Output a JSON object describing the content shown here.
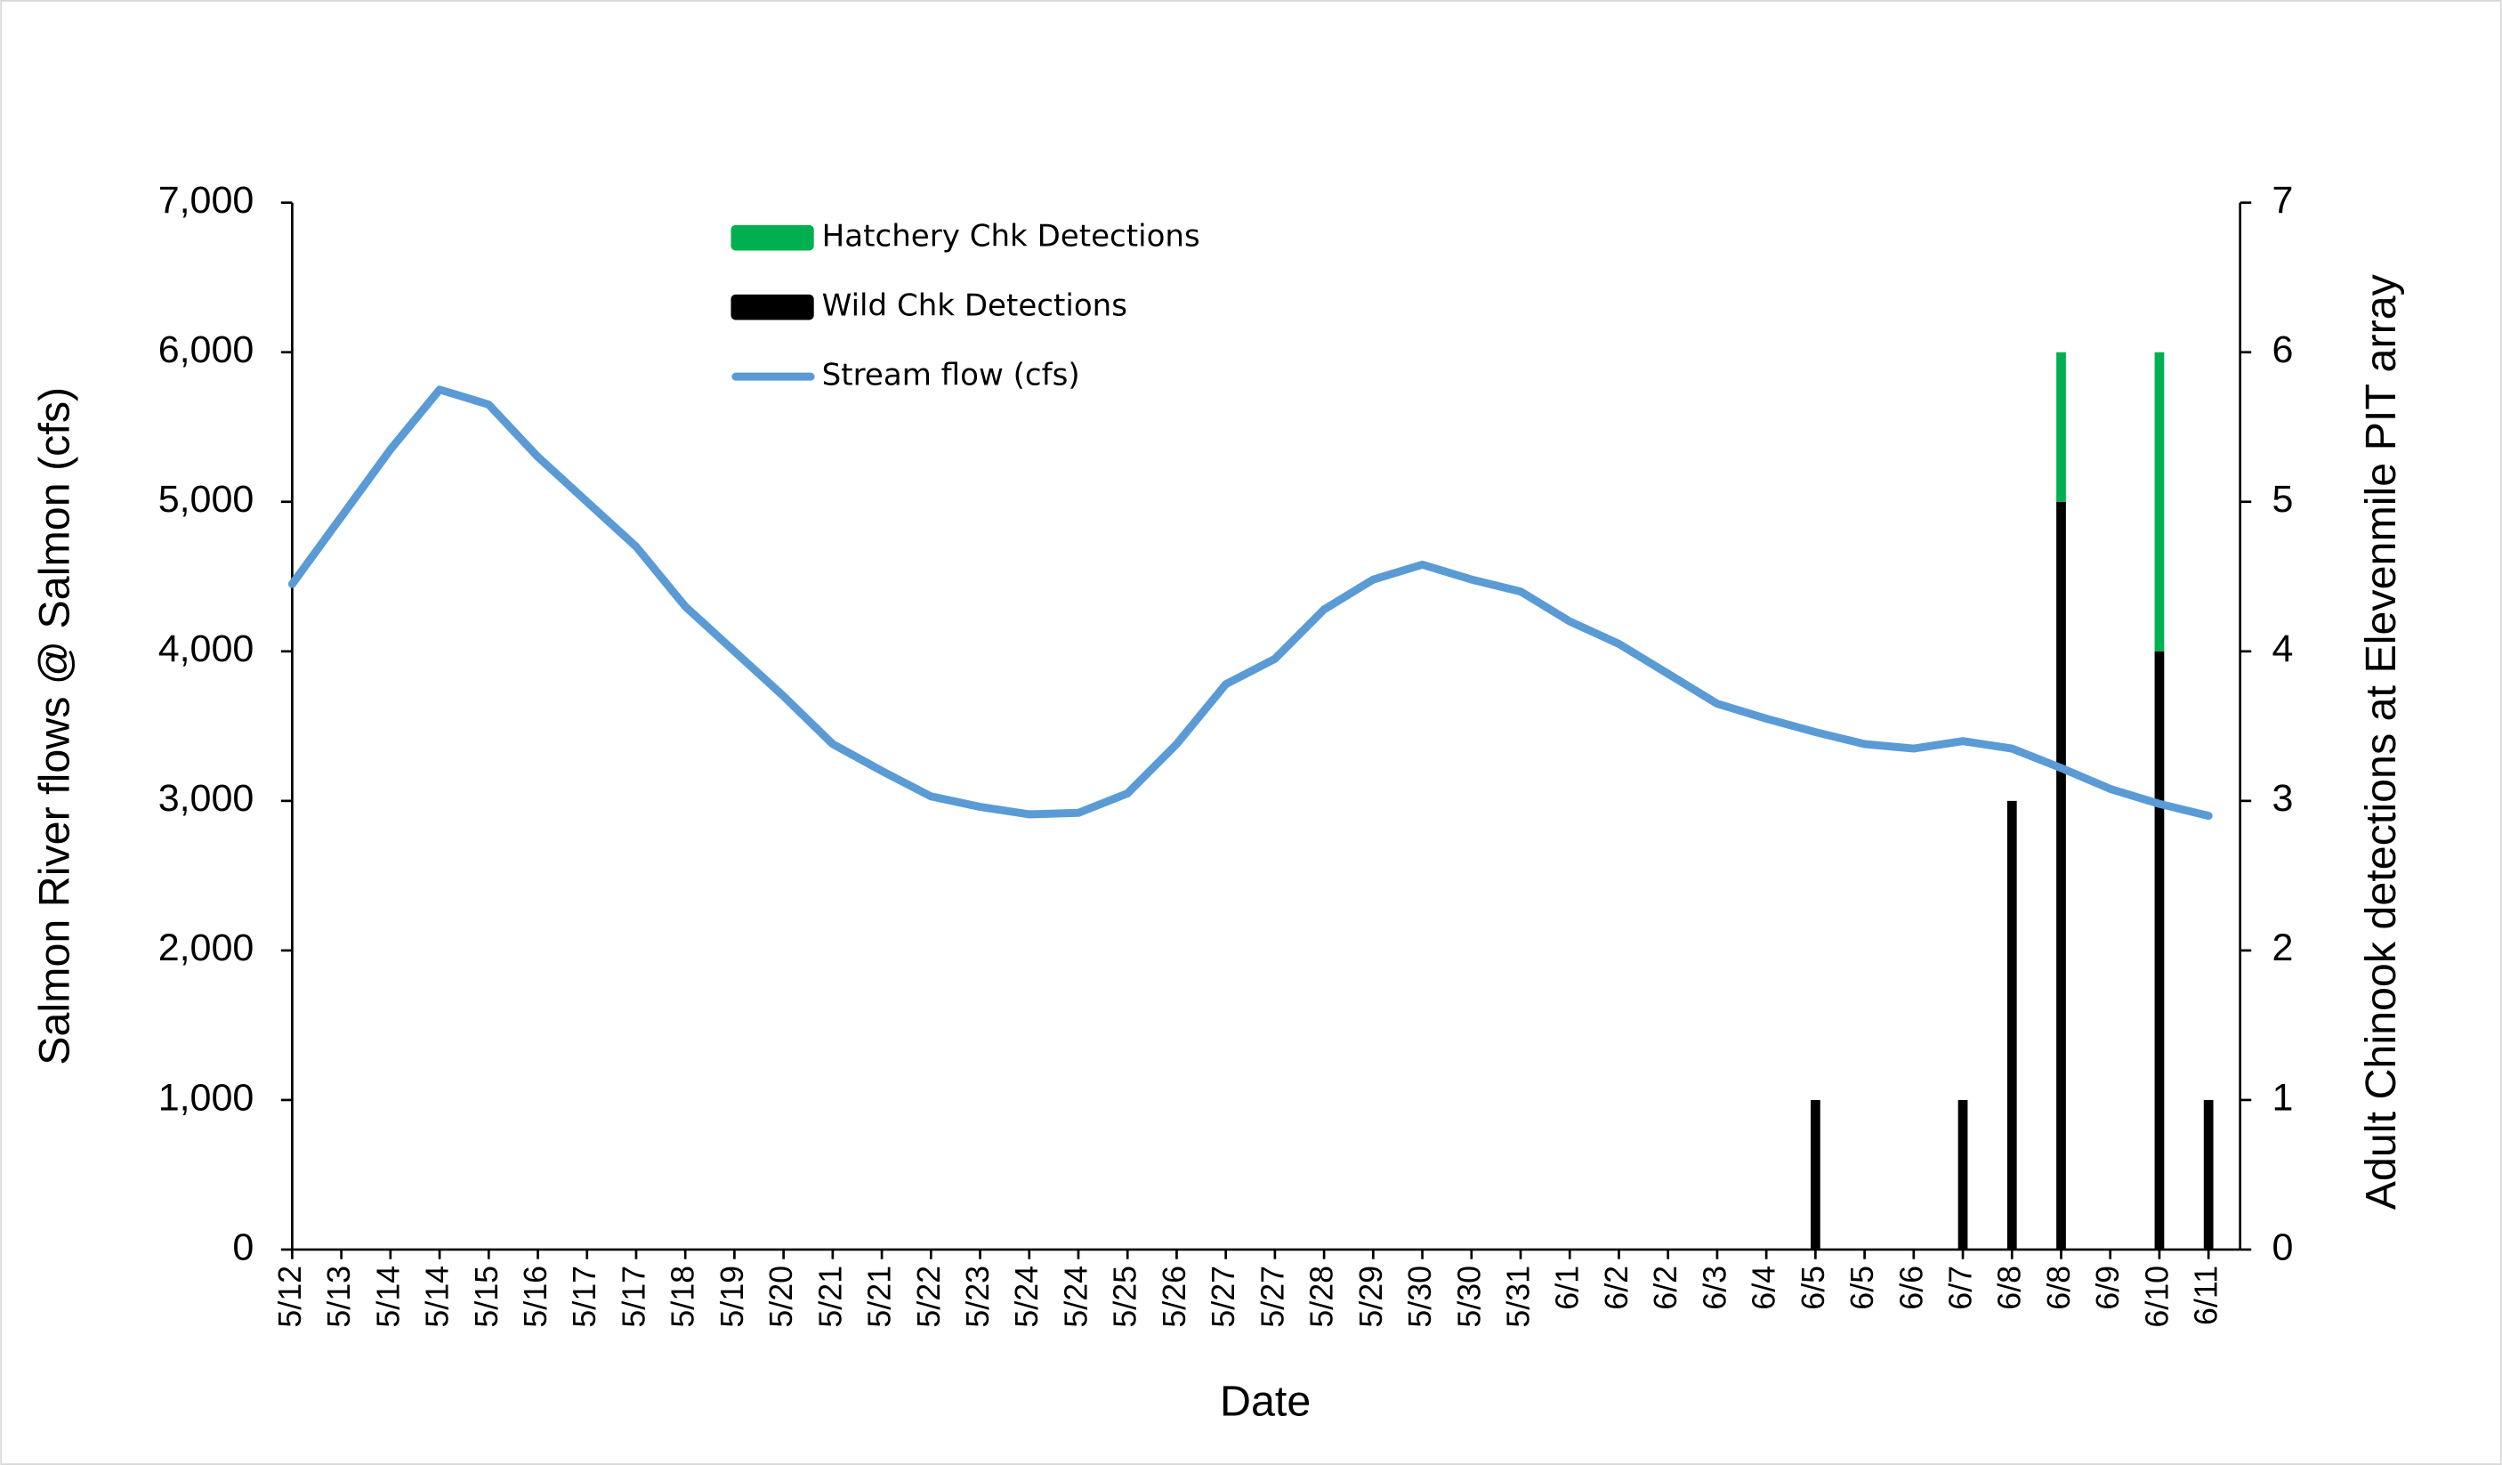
{
  "chart_data": {
    "type": "combo",
    "xlabel": "Date",
    "ylabel": "Salmon River flows @ Salmon (cfs)",
    "y2label": "Adult Chinook detections at Elevenmile PIT array",
    "categories": [
      "5/12",
      "5/13",
      "5/14",
      "5/14",
      "5/15",
      "5/16",
      "5/17",
      "5/17",
      "5/18",
      "5/19",
      "5/20",
      "5/21",
      "5/21",
      "5/22",
      "5/23",
      "5/24",
      "5/24",
      "5/25",
      "5/26",
      "5/27",
      "5/27",
      "5/28",
      "5/29",
      "5/30",
      "5/30",
      "5/31",
      "6/1",
      "6/2",
      "6/2",
      "6/3",
      "6/4",
      "6/5",
      "6/5",
      "6/6",
      "6/7",
      "6/8",
      "6/8",
      "6/9",
      "6/10",
      "6/11"
    ],
    "ylim": [
      0,
      7000
    ],
    "yticks": [
      0,
      {
        "value": 1000,
        "label": "1,000"
      },
      {
        "value": 2000,
        "label": "2,000"
      },
      {
        "value": 3000,
        "label": "3,000"
      },
      {
        "value": 4000,
        "label": "4,000"
      },
      {
        "value": 5000,
        "label": "5,000"
      },
      {
        "value": 6000,
        "label": "6,000"
      },
      {
        "value": 7000,
        "label": "7,000"
      }
    ],
    "y2lim": [
      0,
      7
    ],
    "y2ticks": [
      0,
      1,
      2,
      3,
      4,
      5,
      6,
      7
    ],
    "legend": "upper left",
    "series": [
      {
        "name": "Hatchery Chk Detections",
        "type": "bar",
        "axis": "y2",
        "color": "#00b050",
        "values": [
          null,
          null,
          null,
          null,
          null,
          null,
          null,
          null,
          null,
          null,
          null,
          null,
          null,
          null,
          null,
          null,
          null,
          null,
          null,
          null,
          null,
          null,
          null,
          null,
          null,
          null,
          null,
          null,
          null,
          null,
          null,
          0,
          null,
          null,
          0,
          0,
          1,
          null,
          2,
          0
        ]
      },
      {
        "name": "Wild Chk Detections",
        "type": "bar",
        "axis": "y2",
        "color": "#000000",
        "values": [
          null,
          null,
          null,
          null,
          null,
          null,
          null,
          null,
          null,
          null,
          null,
          null,
          null,
          null,
          null,
          null,
          null,
          null,
          null,
          null,
          null,
          null,
          null,
          null,
          null,
          null,
          null,
          null,
          null,
          null,
          null,
          1,
          null,
          null,
          1,
          3,
          5,
          null,
          4,
          1
        ]
      },
      {
        "name": "Stream flow (cfs)",
        "type": "line",
        "color": "#5b9bd5",
        "values": [
          4450,
          4900,
          5350,
          5750,
          5650,
          5300,
          5000,
          4700,
          4300,
          4000,
          3700,
          3380,
          3200,
          3030,
          2960,
          2910,
          2920,
          3050,
          3380,
          3780,
          3950,
          4280,
          4480,
          4580,
          4480,
          4400,
          4200,
          4050,
          3850,
          3650,
          3550,
          3460,
          3380,
          3350,
          3400,
          3350,
          3220,
          3080,
          2980,
          2900
        ]
      }
    ]
  }
}
